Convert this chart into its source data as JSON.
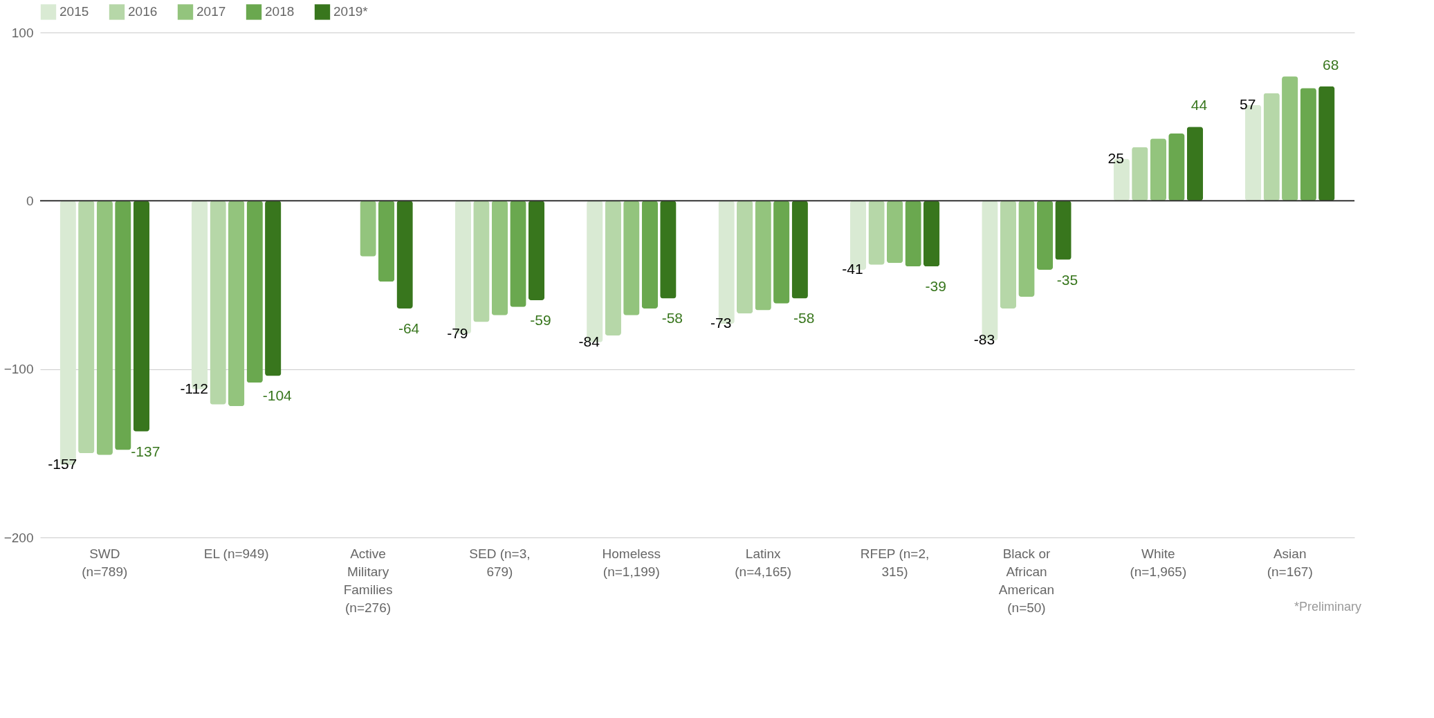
{
  "chart_data": {
    "type": "bar",
    "categories": [
      "SWD (n=789)",
      "EL (n=949)",
      "Active Military Families (n=276)",
      "SED (n=3,679)",
      "Homeless (n=1,199)",
      "Latinx (n=4,165)",
      "RFEP (n=2,315)",
      "Black or African American (n=50)",
      "White (n=1,965)",
      "Asian (n=167)"
    ],
    "series": [
      {
        "name": "2015",
        "color": "#d9ead3",
        "values": [
          -157,
          -112,
          null,
          -79,
          -84,
          -73,
          -41,
          -83,
          25,
          57
        ],
        "value_labels": [
          "-157",
          "-112",
          null,
          "-79",
          "-84",
          "-73",
          "-41",
          "-83",
          "25",
          "57"
        ]
      },
      {
        "name": "2016",
        "color": "#b6d7a8",
        "values": [
          -150,
          -121,
          null,
          -72,
          -80,
          -67,
          -38,
          -64,
          32,
          64
        ]
      },
      {
        "name": "2017",
        "color": "#93c47d",
        "values": [
          -151,
          -122,
          -33,
          -68,
          -68,
          -65,
          -37,
          -57,
          37,
          74
        ]
      },
      {
        "name": "2018",
        "color": "#6aa84f",
        "values": [
          -148,
          -108,
          -48,
          -63,
          -64,
          -61,
          -39,
          -41,
          40,
          67
        ]
      },
      {
        "name": "2019*",
        "color": "#38761d",
        "values": [
          -137,
          -104,
          -64,
          -59,
          -58,
          -58,
          -39,
          -35,
          44,
          68
        ],
        "value_labels": [
          "-137",
          "-104",
          "-64",
          "-59",
          "-58",
          "-58",
          "-39",
          "-35",
          "44",
          "68"
        ]
      }
    ],
    "ylim": [
      -200,
      100
    ],
    "yticks": [
      -200,
      -100,
      0,
      100
    ],
    "grid": "y",
    "legend": "top",
    "ref_lines": [
      {
        "axis": "y",
        "value": 0,
        "color": "#333333"
      }
    ],
    "annotations": [
      "*Preliminary"
    ]
  }
}
